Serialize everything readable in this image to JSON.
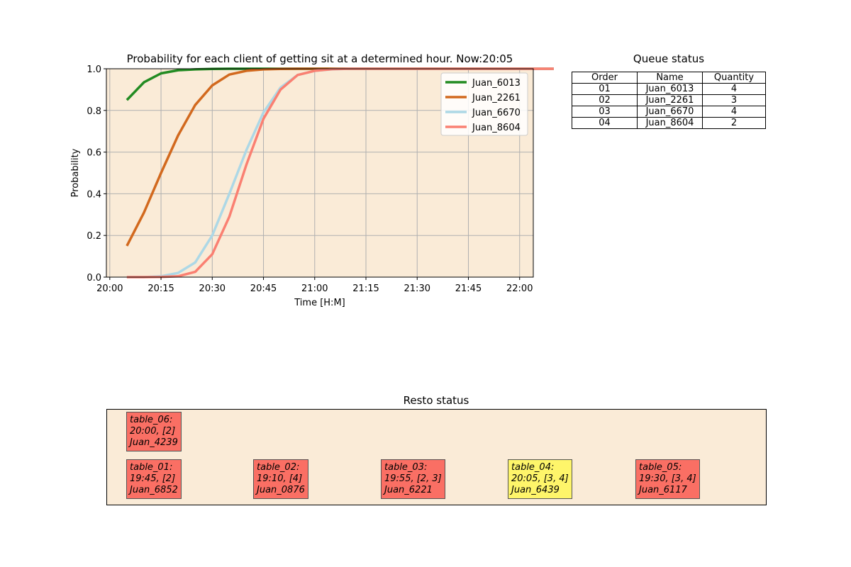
{
  "chart_data": {
    "type": "line",
    "title": "Probability for each client of getting sit at a determined hour. Now:20:05",
    "xlabel": "Time [H:M]",
    "ylabel": "Probability",
    "xlim_minutes": [
      -1,
      124
    ],
    "ylim": [
      0,
      1
    ],
    "x_ticks": [
      "20:00",
      "20:15",
      "20:30",
      "20:45",
      "21:00",
      "21:15",
      "21:30",
      "21:45",
      "22:00"
    ],
    "y_ticks": [
      "0.0",
      "0.2",
      "0.4",
      "0.6",
      "0.8",
      "1.0"
    ],
    "grid": true,
    "legend_position": "top-right",
    "plot_background": "#faebd7",
    "x_times": [
      "20:05",
      "20:10",
      "20:15",
      "20:20",
      "20:25",
      "20:30",
      "20:35",
      "20:40",
      "20:45",
      "20:50",
      "20:55",
      "21:00",
      "21:05",
      "21:10",
      "21:15",
      "21:20",
      "21:25",
      "21:30",
      "21:35",
      "21:40",
      "21:45",
      "21:50",
      "21:55",
      "22:00",
      "22:05",
      "22:10"
    ],
    "series": [
      {
        "name": "Juan_6013",
        "color": "#228b22",
        "values": [
          0.85,
          0.935,
          0.978,
          0.993,
          0.997,
          0.999,
          1.0,
          1.0,
          1.0,
          1.0,
          1.0,
          1.0,
          1.0,
          1.0,
          1.0,
          1.0,
          1.0,
          1.0,
          1.0,
          1.0,
          1.0,
          1.0,
          1.0,
          1.0,
          1.0,
          1.0
        ]
      },
      {
        "name": "Juan_2261",
        "color": "#d2691e",
        "values": [
          0.15,
          0.31,
          0.5,
          0.68,
          0.826,
          0.92,
          0.972,
          0.99,
          0.997,
          0.999,
          1.0,
          1.0,
          1.0,
          1.0,
          1.0,
          1.0,
          1.0,
          1.0,
          1.0,
          1.0,
          1.0,
          1.0,
          1.0,
          1.0,
          1.0,
          1.0
        ]
      },
      {
        "name": "Juan_6670",
        "color": "#add8e6",
        "values": [
          0.0,
          0.0,
          0.004,
          0.02,
          0.07,
          0.2,
          0.4,
          0.61,
          0.79,
          0.91,
          0.97,
          0.99,
          0.997,
          1.0,
          1.0,
          1.0,
          1.0,
          1.0,
          1.0,
          1.0,
          1.0,
          1.0,
          1.0,
          1.0,
          1.0,
          1.0
        ]
      },
      {
        "name": "Juan_8604",
        "color": "#fa8072",
        "values": [
          0.0,
          0.0,
          0.001,
          0.004,
          0.025,
          0.11,
          0.29,
          0.54,
          0.76,
          0.9,
          0.97,
          0.99,
          0.998,
          1.0,
          1.0,
          1.0,
          1.0,
          1.0,
          1.0,
          1.0,
          1.0,
          1.0,
          1.0,
          1.0,
          1.0,
          1.0
        ]
      }
    ]
  },
  "queue": {
    "title": "Queue status",
    "headers": [
      "Order",
      "Name",
      "Quantity"
    ],
    "rows": [
      [
        "01",
        "Juan_6013",
        "4"
      ],
      [
        "02",
        "Juan_2261",
        "3"
      ],
      [
        "03",
        "Juan_6670",
        "4"
      ],
      [
        "04",
        "Juan_8604",
        "2"
      ]
    ]
  },
  "resto": {
    "title": "Resto status",
    "occupied_color": "#fa6f64",
    "reserved_color": "#fef56a",
    "tables": [
      {
        "text": "table_06:\n20:00, [2]\nJuan_4239",
        "status": "occupied"
      },
      {
        "text": "table_01:\n19:45, [2]\nJuan_6852",
        "status": "occupied"
      },
      {
        "text": "table_02:\n19:10, [4]\nJuan_0876",
        "status": "occupied"
      },
      {
        "text": "table_03:\n19:55, [2, 3]\nJuan_6221",
        "status": "occupied"
      },
      {
        "text": "table_04:\n20:05, [3, 4]\nJuan_6439",
        "status": "reserved"
      },
      {
        "text": "table_05:\n19:30, [3, 4]\nJuan_6117",
        "status": "occupied"
      }
    ]
  }
}
